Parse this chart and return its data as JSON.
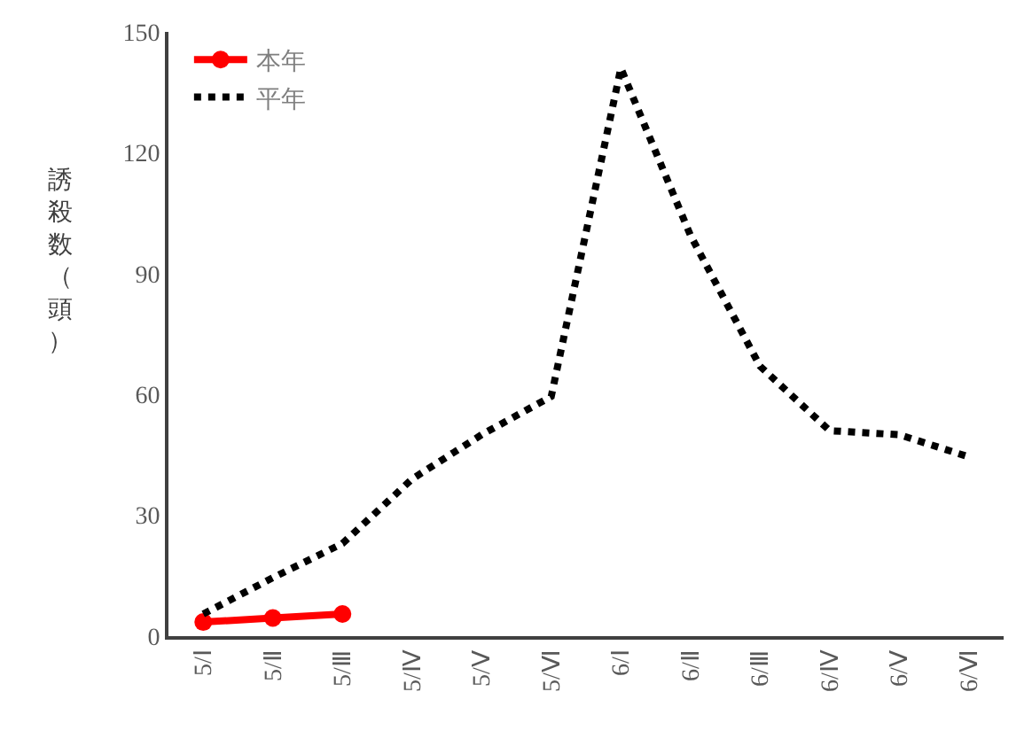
{
  "chart_data": {
    "type": "line",
    "ylabel": "誘殺数（頭）",
    "categories": [
      "5/Ⅰ",
      "5/Ⅱ",
      "5/Ⅲ",
      "5/Ⅳ",
      "5/Ⅴ",
      "5/Ⅵ",
      "6/Ⅰ",
      "6/Ⅱ",
      "6/Ⅲ",
      "6/Ⅳ",
      "6/Ⅴ",
      "6/Ⅵ"
    ],
    "series": [
      {
        "name": "本年",
        "color": "#ff0000",
        "line_style": "solid",
        "marker": "circle",
        "values": [
          3.5,
          4.5,
          5.5,
          null,
          null,
          null,
          null,
          null,
          null,
          null,
          null,
          null
        ]
      },
      {
        "name": "平年",
        "color": "#000000",
        "line_style": "dotted",
        "marker": "none",
        "values": [
          5.5,
          14.5,
          23,
          39,
          50,
          59.5,
          141,
          99.5,
          67,
          51,
          50,
          44.5
        ]
      }
    ],
    "ylim": [
      0,
      150
    ],
    "yticks": [
      0,
      30,
      60,
      90,
      120,
      150
    ],
    "legend": "top left"
  }
}
